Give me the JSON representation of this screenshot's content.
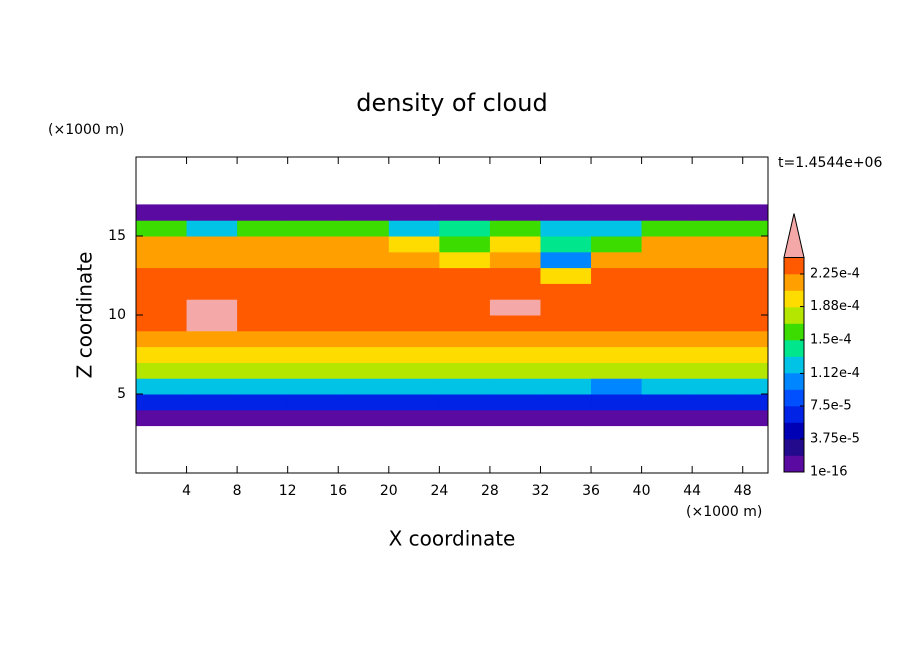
{
  "chart_data": {
    "type": "contourf",
    "title": "density of cloud",
    "x_label": "X coordinate",
    "y_label": "Z coordinate",
    "x_unit": "(×1000 m)",
    "y_unit": "(×1000 m)",
    "time_label": "t=1.4544e+06",
    "xlim": [
      0,
      50
    ],
    "ylim": [
      0,
      20
    ],
    "xticks": [
      4,
      8,
      12,
      16,
      20,
      24,
      28,
      32,
      36,
      40,
      44,
      48
    ],
    "yticks": [
      5,
      10,
      15
    ],
    "x": [
      2,
      6,
      10,
      14,
      18,
      22,
      26,
      30,
      34,
      38,
      42,
      46,
      50
    ],
    "y": [
      3.5,
      4.5,
      5.5,
      6.5,
      7.5,
      8.5,
      9.5,
      10.5,
      11.5,
      12.5,
      13.5,
      14.5,
      15.5,
      16.5
    ],
    "z": [
      [
        5e-06,
        5e-06,
        5e-06,
        5e-06,
        5e-06,
        5e-06,
        5e-06,
        5e-06,
        5e-06,
        5e-06,
        5e-06,
        5e-06,
        5e-06
      ],
      [
        6e-05,
        6e-05,
        6e-05,
        6e-05,
        6e-05,
        6e-05,
        6e-05,
        6e-05,
        6e-05,
        6e-05,
        6e-05,
        6e-05,
        6e-05
      ],
      [
        0.00013,
        0.00013,
        0.00013,
        0.00013,
        0.00013,
        0.00013,
        0.00013,
        0.00013,
        0.00013,
        0.00011,
        0.00013,
        0.00013,
        0.00013
      ],
      [
        0.000175,
        0.000175,
        0.000175,
        0.000175,
        0.000175,
        0.000175,
        0.000175,
        0.000175,
        0.000175,
        0.000175,
        0.000175,
        0.000175,
        0.000175
      ],
      [
        0.0002,
        0.0002,
        0.0002,
        0.0002,
        0.0002,
        0.0002,
        0.0002,
        0.0002,
        0.0002,
        0.0002,
        0.0002,
        0.0002,
        0.0002
      ],
      [
        0.000215,
        0.000215,
        0.000215,
        0.000215,
        0.000215,
        0.000215,
        0.000215,
        0.000215,
        0.000215,
        0.000215,
        0.000215,
        0.000215,
        0.000215
      ],
      [
        0.00023,
        0.00025,
        0.00023,
        0.00023,
        0.00023,
        0.00023,
        0.00023,
        0.00023,
        0.00023,
        0.00023,
        0.00023,
        0.00023,
        0.00023
      ],
      [
        0.000235,
        0.00025,
        0.000235,
        0.000235,
        0.000235,
        0.000235,
        0.000235,
        0.00025,
        0.000235,
        0.000235,
        0.000235,
        0.000235,
        0.000235
      ],
      [
        0.00023,
        0.00023,
        0.00023,
        0.00023,
        0.00023,
        0.00023,
        0.00023,
        0.00023,
        0.00023,
        0.00023,
        0.00023,
        0.00023,
        0.00023
      ],
      [
        0.00023,
        0.00023,
        0.00023,
        0.00023,
        0.00023,
        0.00023,
        0.00023,
        0.00023,
        0.0002,
        0.00023,
        0.00023,
        0.00023,
        0.00023
      ],
      [
        0.00022,
        0.00022,
        0.00022,
        0.00022,
        0.00022,
        0.00022,
        0.00019,
        0.00022,
        0.00011,
        0.00022,
        0.00022,
        0.00022,
        0.00022
      ],
      [
        0.00021,
        0.00021,
        0.00021,
        0.00021,
        0.00021,
        0.0002,
        0.00015,
        0.00019,
        0.00014,
        0.00016,
        0.00021,
        0.00021,
        0.00021
      ],
      [
        0.00016,
        0.00012,
        0.00016,
        0.00016,
        0.00016,
        0.00013,
        0.00014,
        0.00016,
        0.00012,
        0.00013,
        0.00016,
        0.00016,
        0.00016
      ],
      [
        1e-05,
        1e-05,
        1e-05,
        1e-05,
        1e-05,
        1e-05,
        1e-05,
        1e-05,
        1e-05,
        1e-05,
        1e-05,
        1e-05,
        1e-05
      ]
    ],
    "levels": [
      1e-16,
      1.875e-05,
      3.75e-05,
      5.625e-05,
      7.5e-05,
      9.375e-05,
      0.0001125,
      0.00013125,
      0.00015,
      0.00016875,
      0.0001875,
      0.00020625,
      0.000225,
      0.00024375
    ],
    "colors": [
      "#5a0aa0",
      "#23098c",
      "#0000b4",
      "#0023e6",
      "#0050ff",
      "#0087ff",
      "#00c3e6",
      "#00e68c",
      "#3cdc00",
      "#b4e600",
      "#ffdc00",
      "#ffa000",
      "#ff5a00"
    ],
    "top_color": "#ff2d1e",
    "extend_color": "#f5a8a8",
    "cbar_ticks": [
      {
        "value": 1e-16,
        "label": "1e-16"
      },
      {
        "value": 3.75e-05,
        "label": "3.75e-5"
      },
      {
        "value": 7.5e-05,
        "label": "7.5e-5"
      },
      {
        "value": 0.000112,
        "label": "1.12e-4"
      },
      {
        "value": 0.00015,
        "label": "1.5e-4"
      },
      {
        "value": 0.000188,
        "label": "1.88e-4"
      },
      {
        "value": 0.000225,
        "label": "2.25e-4"
      }
    ]
  }
}
